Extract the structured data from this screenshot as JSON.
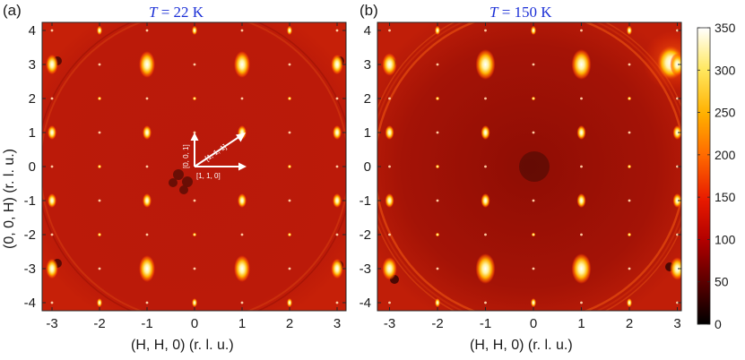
{
  "panels": [
    {
      "id": "a",
      "label": "(a)",
      "title_var": "T",
      "title_value": "= 22 K",
      "inset": {
        "arrow_001": "[0, 0, 1]",
        "arrow_111": "[1, 1, 1]",
        "arrow_110": "[1, 1, 0]"
      }
    },
    {
      "id": "b",
      "label": "(b)",
      "title_var": "T",
      "title_value": "= 150 K"
    }
  ],
  "axes": {
    "xlabel": "(H, H, 0) (r. l. u.)",
    "ylabel": "(0, 0, H) (r. l. u.)",
    "xticks": [
      "-3",
      "-2",
      "-1",
      "0",
      "1",
      "2",
      "3"
    ],
    "yticks": [
      "4",
      "3",
      "2",
      "1",
      "0",
      "-1",
      "-2",
      "-3",
      "-4"
    ]
  },
  "colorbar": {
    "ticks": [
      "350",
      "300",
      "250",
      "200",
      "150",
      "100",
      "50",
      "0"
    ],
    "colormap": [
      "#000000",
      "#5a0000",
      "#b00000",
      "#e81a00",
      "#ff6a00",
      "#ffb000",
      "#ffe860",
      "#ffffff"
    ]
  },
  "colors": {
    "background_red": "#b81808",
    "title_blue": "#1b2fd6"
  }
}
